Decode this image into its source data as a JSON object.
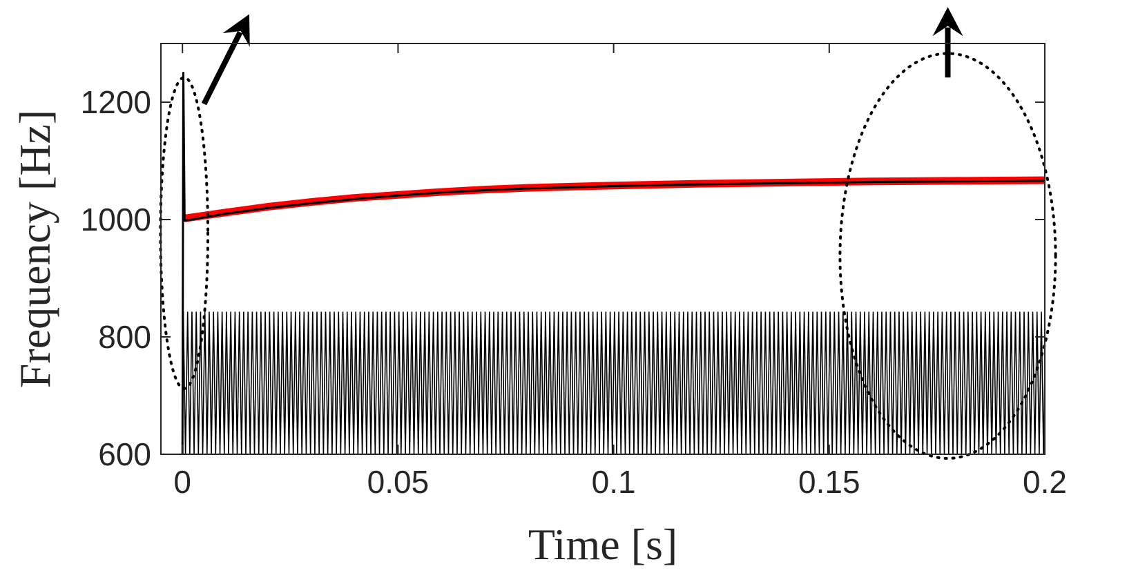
{
  "chart_data": {
    "type": "line",
    "title": "",
    "xlabel": "Time [s]",
    "ylabel": "Frequency [Hz]",
    "xlim": [
      -0.005,
      0.2
    ],
    "ylim": [
      600,
      1300
    ],
    "xticks": [
      0,
      0.05,
      0.1,
      0.15,
      0.2
    ],
    "xtick_labels": [
      "0",
      "0.05",
      "0.1",
      "0.15",
      "0.2"
    ],
    "yticks": [
      600,
      800,
      1000,
      1200
    ],
    "ytick_labels": [
      "600",
      "800",
      "1000",
      "1200"
    ],
    "grid": false,
    "legend": null,
    "series": [
      {
        "style": "red-thick",
        "color": "#ff0000",
        "x": [
          0.0005,
          0.01,
          0.02,
          0.03,
          0.04,
          0.05,
          0.06,
          0.07,
          0.08,
          0.09,
          0.1,
          0.12,
          0.14,
          0.16,
          0.18,
          0.2
        ],
        "y": [
          1002,
          1012,
          1022,
          1030,
          1037,
          1042,
          1047,
          1051,
          1054,
          1056,
          1058,
          1061,
          1063,
          1065,
          1066,
          1067
        ]
      },
      {
        "style": "black-thin",
        "color": "#000000",
        "x": [
          0,
          0.0002,
          0.0005,
          0.01,
          0.02,
          0.03,
          0.04,
          0.05,
          0.06,
          0.07,
          0.08,
          0.09,
          0.1,
          0.12,
          0.14,
          0.16,
          0.18,
          0.2
        ],
        "y": [
          600,
          1250,
          998,
          1010,
          1020,
          1028,
          1035,
          1041,
          1046,
          1050,
          1053,
          1055,
          1057,
          1060,
          1062,
          1064,
          1065,
          1066
        ]
      },
      {
        "style": "black-oscillation",
        "color": "#000000",
        "description_values": {
          "x_start": 0.0002,
          "x_end": 0.2,
          "period": 0.001,
          "y_min": 600,
          "y_max": 843
        }
      }
    ],
    "annotations": [
      {
        "type": "dotted-ellipse",
        "center": [
          0.0004,
          977
        ],
        "semi_axes": [
          0.0055,
          265
        ]
      },
      {
        "type": "dotted-ellipse",
        "center": [
          0.1775,
          938
        ],
        "semi_axes": [
          0.025,
          345
        ]
      },
      {
        "type": "arrow",
        "from": [
          0.005,
          1197
        ],
        "to": [
          0.0155,
          1350
        ]
      },
      {
        "type": "arrow",
        "from": [
          0.1775,
          1242
        ],
        "to": [
          0.1775,
          1362
        ]
      }
    ]
  }
}
